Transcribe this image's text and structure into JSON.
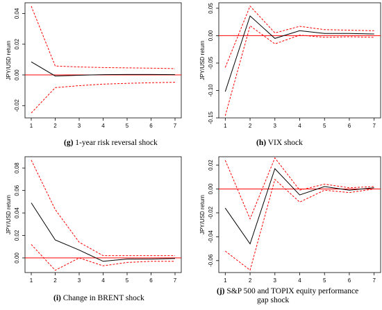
{
  "chart_data": [
    {
      "type": "line",
      "ylabel": "JPY/USD return",
      "x": [
        1,
        2,
        3,
        4,
        5,
        6,
        7
      ],
      "ylim": [
        -0.028,
        0.047
      ],
      "yticks": [
        -0.02,
        0.0,
        0.02,
        0.04
      ],
      "ytick_labels": [
        "-0.02",
        "0.00",
        "0.02",
        "0.04"
      ],
      "series": [
        {
          "role": "response",
          "color": "#000000",
          "dash": "solid",
          "values": [
            0.0085,
            -0.0007,
            -0.0002,
            0.0002,
            0.0003,
            0.0003,
            0.0002
          ]
        },
        {
          "role": "upper",
          "color": "#ff0000",
          "dash": "dashed",
          "values": [
            0.0448,
            0.0058,
            0.0052,
            0.0048,
            0.0046,
            0.0044,
            0.0041
          ]
        },
        {
          "role": "lower",
          "color": "#ff0000",
          "dash": "dashed",
          "values": [
            -0.0248,
            -0.0083,
            -0.007,
            -0.006,
            -0.0055,
            -0.0051,
            -0.0048
          ]
        }
      ],
      "zero_line_color": "#ff0000",
      "caption_letter": "(g)",
      "caption_text": " 1-year risk reversal shock"
    },
    {
      "type": "line",
      "ylabel": "JPY/USD return",
      "x": [
        1,
        2,
        3,
        4,
        5,
        6,
        7
      ],
      "ylim": [
        -0.15,
        0.06
      ],
      "yticks": [
        -0.15,
        -0.1,
        -0.05,
        0.0,
        0.05
      ],
      "ytick_labels": [
        "-0.15",
        "-0.10",
        "-0.05",
        "0.00",
        "0.05"
      ],
      "series": [
        {
          "role": "response",
          "color": "#000000",
          "dash": "solid",
          "values": [
            -0.102,
            0.036,
            -0.005,
            0.009,
            0.004,
            0.004,
            0.003
          ]
        },
        {
          "role": "upper",
          "color": "#ff0000",
          "dash": "dashed",
          "values": [
            -0.058,
            0.054,
            0.005,
            0.017,
            0.011,
            0.01,
            0.009
          ]
        },
        {
          "role": "lower",
          "color": "#ff0000",
          "dash": "dashed",
          "values": [
            -0.146,
            0.018,
            -0.015,
            0.001,
            -0.003,
            -0.002,
            -0.003
          ]
        }
      ],
      "zero_line_color": "#ff0000",
      "caption_letter": "(h)",
      "caption_text": " VIX shock"
    },
    {
      "type": "line",
      "ylabel": "JPY/USD return",
      "x": [
        1,
        2,
        3,
        4,
        5,
        6,
        7
      ],
      "ylim": [
        -0.013,
        0.09
      ],
      "yticks": [
        0.0,
        0.02,
        0.04,
        0.06,
        0.08
      ],
      "ytick_labels": [
        "0.00",
        "0.02",
        "0.04",
        "0.06",
        "0.08"
      ],
      "series": [
        {
          "role": "response",
          "color": "#000000",
          "dash": "solid",
          "values": [
            0.049,
            0.016,
            0.007,
            -0.003,
            -0.001,
            -0.001,
            -0.0005
          ]
        },
        {
          "role": "upper",
          "color": "#ff0000",
          "dash": "dashed",
          "values": [
            0.087,
            0.043,
            0.014,
            0.002,
            0.002,
            0.002,
            0.002
          ]
        },
        {
          "role": "lower",
          "color": "#ff0000",
          "dash": "dashed",
          "values": [
            0.012,
            -0.011,
            0.0,
            -0.007,
            -0.004,
            -0.003,
            -0.003
          ]
        }
      ],
      "zero_line_color": "#ff0000",
      "caption_letter": "(i)",
      "caption_text": " Change in BRENT shock"
    },
    {
      "type": "line",
      "ylabel": "JPY/USD return",
      "x": [
        1,
        2,
        3,
        4,
        5,
        6,
        7
      ],
      "ylim": [
        -0.07,
        0.027
      ],
      "yticks": [
        -0.06,
        -0.04,
        -0.02,
        0.0,
        0.02
      ],
      "ytick_labels": [
        "-0.06",
        "-0.04",
        "-0.02",
        "0.00",
        "0.02"
      ],
      "series": [
        {
          "role": "response",
          "color": "#000000",
          "dash": "solid",
          "values": [
            -0.016,
            -0.046,
            0.017,
            -0.005,
            0.002,
            -0.001,
            0.001
          ]
        },
        {
          "role": "upper",
          "color": "#ff0000",
          "dash": "dashed",
          "values": [
            0.024,
            -0.025,
            0.026,
            -0.001,
            0.004,
            0.001,
            0.002
          ]
        },
        {
          "role": "lower",
          "color": "#ff0000",
          "dash": "dashed",
          "values": [
            -0.052,
            -0.068,
            0.008,
            -0.011,
            -0.001,
            -0.003,
            0.0
          ]
        }
      ],
      "zero_line_color": "#ff0000",
      "caption_letter": "(j)",
      "caption_text": " S&P 500 and TOPIX equity performance",
      "caption_text_line2": "gap shock"
    }
  ]
}
